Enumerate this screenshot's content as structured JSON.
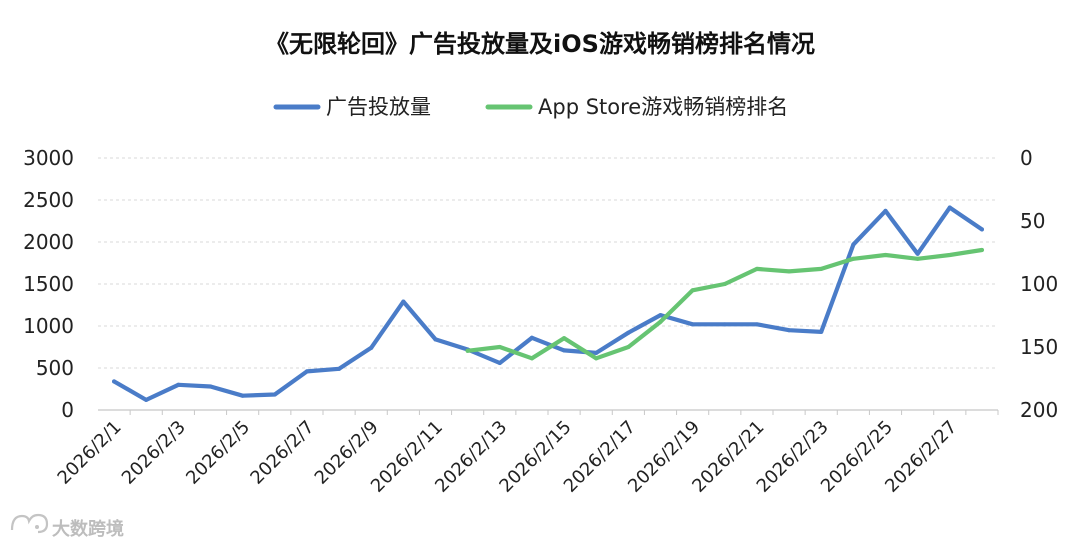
{
  "chart_data": {
    "type": "line",
    "title": "《无限轮回》广告投放量及iOS游戏畅销榜排名情况",
    "categories": [
      "2026/2/1",
      "2026/2/2",
      "2026/2/3",
      "2026/2/4",
      "2026/2/5",
      "2026/2/6",
      "2026/2/7",
      "2026/2/8",
      "2026/2/9",
      "2026/2/10",
      "2026/2/11",
      "2026/2/12",
      "2026/2/13",
      "2026/2/14",
      "2026/2/15",
      "2026/2/16",
      "2026/2/17",
      "2026/2/18",
      "2026/2/19",
      "2026/2/20",
      "2026/2/21",
      "2026/2/22",
      "2026/2/23",
      "2026/2/24",
      "2026/2/25",
      "2026/2/26",
      "2026/2/27",
      "2026/2/28"
    ],
    "x_tick_labels": [
      "2026/2/1",
      "2026/2/3",
      "2026/2/5",
      "2026/2/7",
      "2026/2/9",
      "2026/2/11",
      "2026/2/13",
      "2026/2/15",
      "2026/2/17",
      "2026/2/19",
      "2026/2/21",
      "2026/2/23",
      "2026/2/25",
      "2026/2/27"
    ],
    "series": [
      {
        "name": "广告投放量",
        "color": "#4a7cc8",
        "axis": "left",
        "values": [
          340,
          120,
          300,
          280,
          170,
          185,
          460,
          490,
          740,
          1290,
          840,
          720,
          560,
          860,
          710,
          680,
          920,
          1130,
          1020,
          1020,
          1020,
          950,
          930,
          1970,
          2370,
          1860,
          2410,
          2150
        ]
      },
      {
        "name": "App Store游戏畅销榜排名",
        "color": "#66c472",
        "axis": "right",
        "values": [
          null,
          null,
          null,
          null,
          null,
          null,
          null,
          null,
          null,
          null,
          null,
          153,
          150,
          159,
          143,
          159,
          150,
          130,
          105,
          100,
          88,
          90,
          88,
          80,
          77,
          80,
          77,
          73
        ]
      }
    ],
    "y_left": {
      "ylim": [
        0,
        3000
      ],
      "ticks": [
        "0",
        "500",
        "1000",
        "1500",
        "2000",
        "2500",
        "3000"
      ],
      "tick_values": [
        0,
        500,
        1000,
        1500,
        2000,
        2500,
        3000
      ]
    },
    "y_right": {
      "ylim": [
        0,
        200
      ],
      "inverted": true,
      "ticks": [
        "0",
        "50",
        "100",
        "150",
        "200"
      ],
      "tick_values": [
        0,
        50,
        100,
        150,
        200
      ]
    },
    "grid": true,
    "legend_position": "top"
  },
  "watermark": "大数跨境"
}
